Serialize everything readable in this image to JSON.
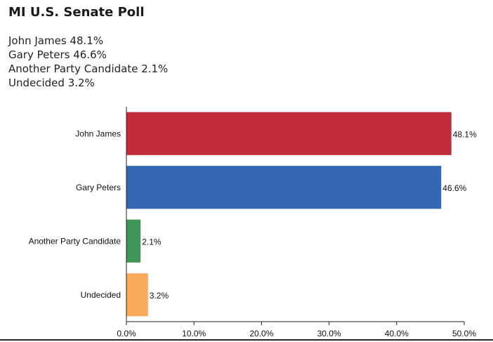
{
  "title": "MI U.S. Senate Poll",
  "summary": [
    "John James 48.1%",
    "Gary Peters 46.6%",
    "Another Party Candidate 2.1%",
    "Undecided 3.2%"
  ],
  "chart_data": {
    "type": "bar",
    "orientation": "horizontal",
    "categories": [
      "John James",
      "Gary Peters",
      "Another Party Candidate",
      "Undecided"
    ],
    "values": [
      48.1,
      46.6,
      2.1,
      3.2
    ],
    "value_labels": [
      "48.1%",
      "46.6%",
      "2.1%",
      "3.2%"
    ],
    "colors": [
      "#c12b3a",
      "#3366b3",
      "#3f9657",
      "#fbab5c"
    ],
    "xlim": [
      0,
      50
    ],
    "x_ticks": [
      0,
      10,
      20,
      30,
      40,
      50
    ],
    "x_tick_labels": [
      "0.0%",
      "10.0%",
      "20.0%",
      "30.0%",
      "40.0%",
      "50.0%"
    ],
    "grid": false
  }
}
